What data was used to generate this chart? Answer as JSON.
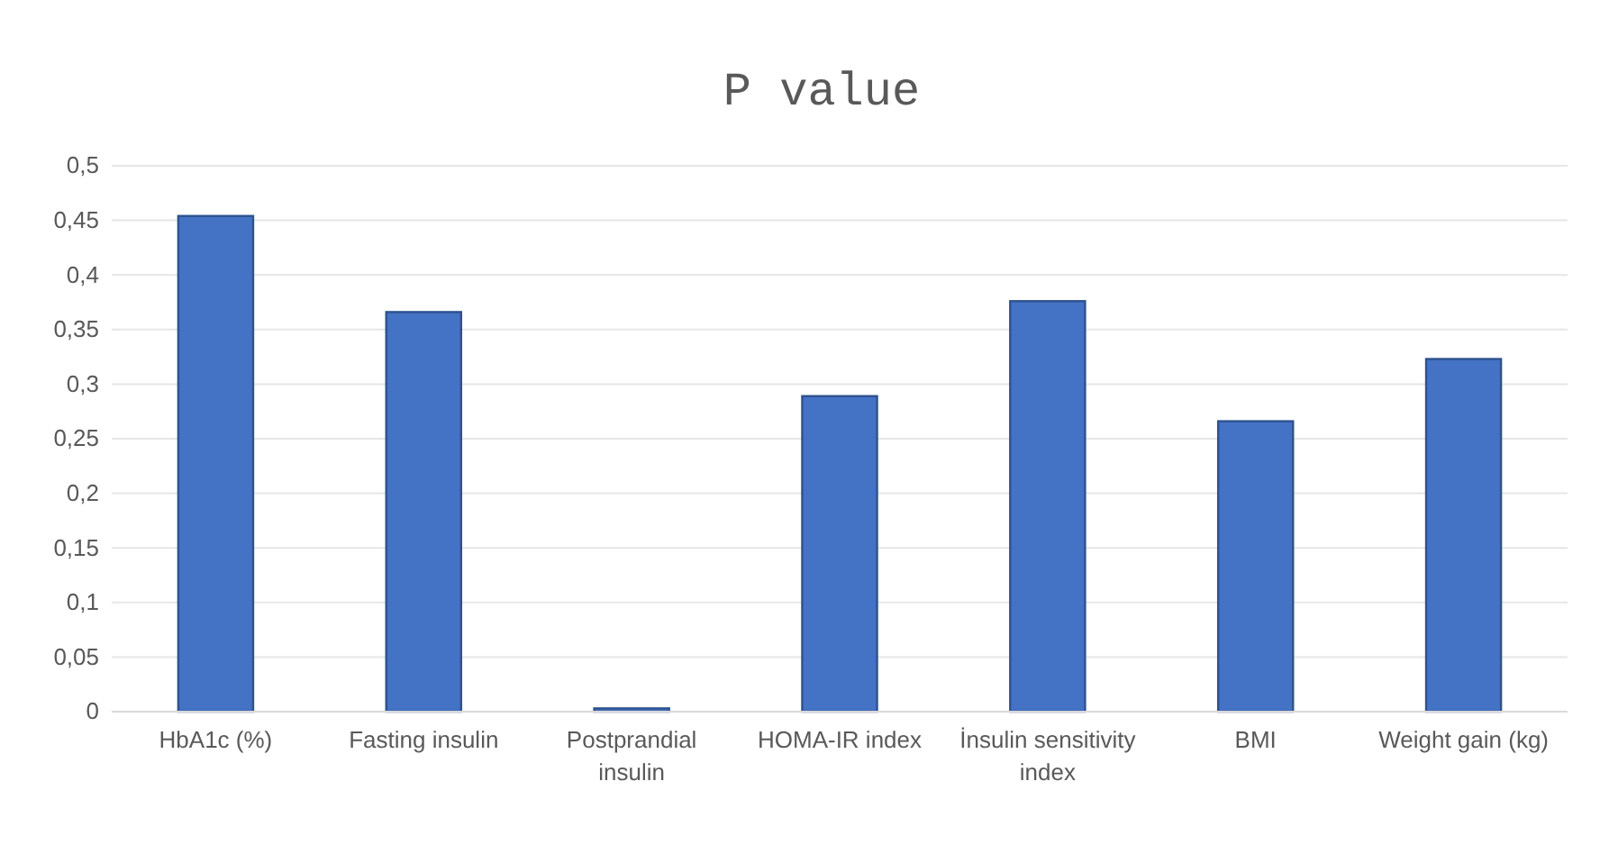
{
  "chart_data": {
    "type": "bar",
    "title": "P value",
    "categories": [
      "HbA1c (%)",
      "Fasting insulin",
      "Postprandial insulin",
      "HOMA-IR index",
      "İnsulin sensitivity index",
      "BMI",
      "Weight gain (kg)"
    ],
    "values": [
      0.454,
      0.366,
      0.003,
      0.289,
      0.376,
      0.266,
      0.323
    ],
    "color": "#4472c4",
    "ylim": [
      0,
      0.5
    ],
    "yticks": [
      0,
      {
        "value": 0.05,
        "label": "0,05"
      },
      {
        "value": 0.1,
        "label": "0,1"
      },
      {
        "value": 0.15,
        "label": "0,15"
      },
      {
        "value": 0.2,
        "label": "0,2"
      },
      {
        "value": 0.25,
        "label": "0,25"
      },
      {
        "value": 0.3,
        "label": "0,3"
      },
      {
        "value": 0.35,
        "label": "0,35"
      },
      {
        "value": 0.4,
        "label": "0,4"
      },
      {
        "value": 0.45,
        "label": "0,45"
      },
      {
        "value": 0.5,
        "label": "0,5"
      }
    ],
    "grid": "y"
  }
}
